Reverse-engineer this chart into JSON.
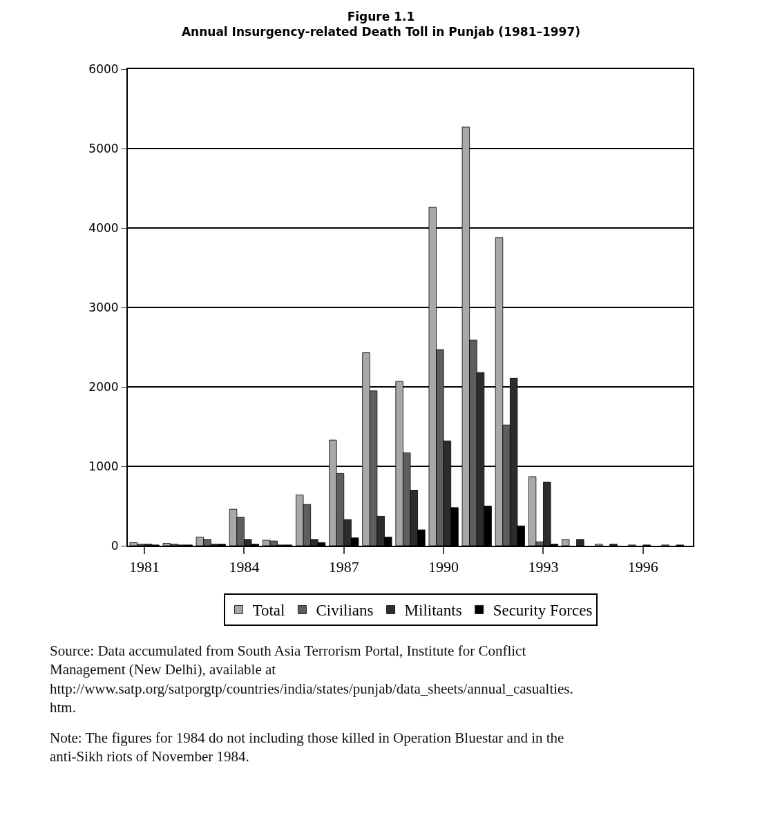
{
  "chart_data": {
    "type": "bar",
    "title": "Figure 1.1",
    "subtitle": "Annual Insurgency-related Death Toll in Punjab (1981–1997)",
    "categories": [
      "1981",
      null,
      null,
      "1984",
      null,
      null,
      "1987",
      null,
      null,
      "1990",
      null,
      null,
      "1993",
      null,
      null,
      "1996",
      null
    ],
    "series": [
      {
        "name": "Total",
        "color": "#a8a8a8",
        "values": [
          40,
          30,
          110,
          460,
          70,
          640,
          1330,
          2430,
          2070,
          4260,
          5270,
          3880,
          870,
          80,
          20,
          10,
          10
        ]
      },
      {
        "name": "Civilians",
        "color": "#5e5e5e",
        "values": [
          20,
          20,
          80,
          360,
          60,
          520,
          910,
          1950,
          1170,
          2470,
          2590,
          1520,
          50,
          null,
          null,
          null,
          null
        ]
      },
      {
        "name": "Militants",
        "color": "#2c2c2c",
        "values": [
          20,
          10,
          20,
          80,
          10,
          80,
          330,
          370,
          700,
          1320,
          2180,
          2110,
          800,
          80,
          20,
          10,
          10
        ]
      },
      {
        "name": "Security Forces",
        "color": "#000000",
        "values": [
          10,
          10,
          20,
          20,
          10,
          40,
          100,
          110,
          200,
          480,
          500,
          250,
          20,
          null,
          null,
          null,
          null
        ]
      }
    ],
    "ylim": [
      0,
      6000
    ],
    "yticks": [
      0,
      1000,
      2000,
      3000,
      4000,
      5000,
      6000
    ],
    "grid": "y",
    "legend": "bottom",
    "annotations": [
      "Source: Data accumulated from South Asia Terrorism Portal, Institute for Conflict Management (New Delhi), available at http://www.satp.org/satporgtp/countries/india/states/punjab/data_sheets/annual_casualties.htm.",
      "Note: The figures for 1984 do not including those killed in Operation Bluestar and in the anti-Sikh riots of November 1984."
    ]
  }
}
